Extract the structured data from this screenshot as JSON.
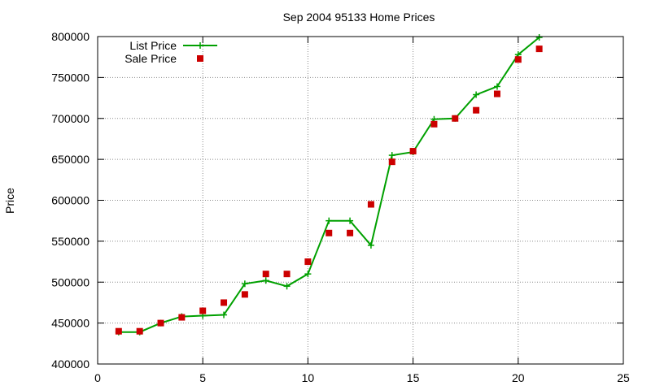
{
  "chart_data": {
    "type": "line",
    "title": "Sep 2004 95133 Home Prices",
    "xlabel": "",
    "ylabel": "Price",
    "xlim": [
      0,
      25
    ],
    "ylim": [
      400000,
      800000
    ],
    "xticks": [
      0,
      5,
      10,
      15,
      20,
      25
    ],
    "yticks": [
      400000,
      450000,
      500000,
      550000,
      600000,
      650000,
      700000,
      750000,
      800000
    ],
    "grid": true,
    "legend_position": "top-left",
    "series": [
      {
        "name": "List Price",
        "style": "line-plus",
        "color": "#00a000",
        "x": [
          1,
          2,
          3,
          4,
          5,
          6,
          7,
          8,
          9,
          10,
          11,
          12,
          13,
          14,
          15,
          16,
          17,
          18,
          19,
          20,
          21
        ],
        "y": [
          439000,
          439000,
          450000,
          458000,
          459000,
          460000,
          498000,
          502000,
          495000,
          510000,
          575000,
          575000,
          545000,
          655000,
          659000,
          699000,
          700000,
          729000,
          739000,
          778000,
          799000
        ]
      },
      {
        "name": "Sale Price",
        "style": "square",
        "color": "#cc0000",
        "x": [
          1,
          2,
          3,
          4,
          5,
          6,
          7,
          8,
          9,
          10,
          11,
          12,
          13,
          14,
          15,
          16,
          17,
          18,
          19,
          20,
          21
        ],
        "y": [
          440000,
          440000,
          450000,
          457000,
          465000,
          475000,
          485000,
          510000,
          510000,
          525000,
          560000,
          560000,
          595000,
          647000,
          660000,
          693000,
          700000,
          710000,
          730000,
          772000,
          785000
        ]
      }
    ]
  }
}
